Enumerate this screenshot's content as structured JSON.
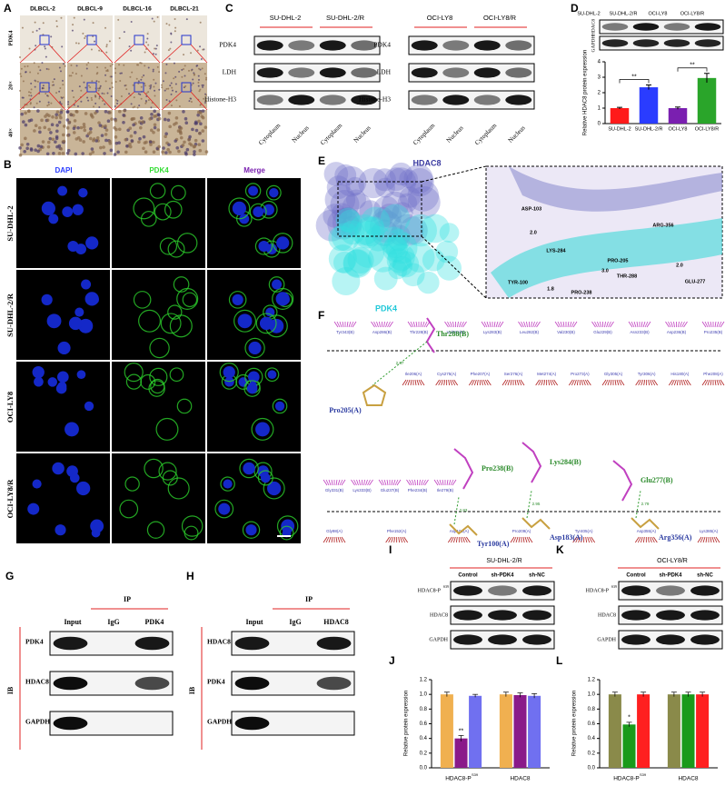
{
  "panel_labels": [
    "A",
    "B",
    "C",
    "D",
    "E",
    "F",
    "G",
    "H",
    "I",
    "J",
    "K",
    "L"
  ],
  "panel_a": {
    "columns": [
      "DLBCL-2",
      "DLBCL-9",
      "DLBCL-16",
      "DLBCL-21"
    ],
    "rows": [
      "PDK4",
      "20×",
      "40×"
    ]
  },
  "panel_b": {
    "columns": [
      "DAPI",
      "PDK4",
      "Merge"
    ],
    "rows": [
      "SU-DHL-2",
      "SU-DHL-2/R",
      "OCI-LY8",
      "OCI-LY8/R"
    ]
  },
  "panel_c": {
    "blots": [
      {
        "groups": [
          "SU-DHL-2",
          "SU-DHL-2/R"
        ],
        "proteins": [
          "PDK4",
          "LDH",
          "Histone-H3"
        ],
        "lanes": [
          "Cytoplasm",
          "Nucleus",
          "Cytoplasm",
          "Nucleus"
        ]
      },
      {
        "groups": [
          "OCI-LY8",
          "OCI-LY8/R"
        ],
        "proteins": [
          "PDK4",
          "LDH",
          "Histone-H3"
        ],
        "lanes": [
          "Cytoplasm",
          "Nucleus",
          "Cytoplasm",
          "Nucleus"
        ]
      }
    ]
  },
  "panel_d": {
    "proteins": [
      "HDAC8",
      "GAPDH"
    ]
  },
  "panel_e": {
    "proteins": [
      "HDAC8",
      "PDK4"
    ],
    "residues": [
      "ASP-103",
      "LYS-284",
      "PRO-205",
      "ARG-356",
      "THR-288",
      "GLU-277",
      "TYR-100",
      "PRO-238"
    ],
    "distances": [
      "2.0",
      "1.8",
      "3.0",
      "2.0"
    ]
  },
  "panel_f": {
    "upper": {
      "top_row": [
        "Tyr343(B)",
        "Asp286(B)",
        "Thr228(B)",
        "Val231(B)",
        "Lys283(B)",
        "Leu282(B)",
        "Val230(B)",
        "Glu229(B)",
        "Asn233(B)",
        "Asp236(B)",
        "Pro235(B)"
      ],
      "bottom_row": [
        "Ile206(A)",
        "Cys275(A)",
        "Phe207(A)",
        "Ser276(A)",
        "Met274(A)",
        "Pro273(A)",
        "Gly305(A)",
        "Tyr306(A)",
        "His180(A)",
        "Phe208(A)"
      ],
      "bonded": [
        "Thr288(B)",
        "Pro205(A)"
      ],
      "distances": [
        "2.87"
      ]
    },
    "lower": {
      "top_row": [
        "Gly331(B)",
        "Lys333(B)",
        "Glu237(B)",
        "Phe234(B)",
        "Ile279(B)"
      ],
      "bottom_row": [
        "Gly98(A)",
        "Phe152(A)",
        "Asp101(A)",
        "Pro209(A)",
        "Tyr405(A)",
        "Asp355(A)",
        "Lys385(A)"
      ],
      "bonded_b": [
        "Pro238(B)",
        "Lys284(B)",
        "Glu277(B)"
      ],
      "bonded_a": [
        "Tyr100(A)",
        "Asp183(A)",
        "Arg356(A)"
      ],
      "distances": [
        "2.83",
        "2.95",
        "2.79"
      ]
    }
  },
  "panel_g": {
    "blot_label": "IB",
    "ip_label": "IP",
    "lanes": [
      "Input",
      "IgG",
      "PDK4"
    ],
    "proteins": [
      "PDK4",
      "HDAC8",
      "GAPDH"
    ]
  },
  "panel_h": {
    "blot_label": "IB",
    "ip_label": "IP",
    "lanes": [
      "Input",
      "IgG",
      "HDAC8"
    ],
    "proteins": [
      "HDAC8",
      "PDK4",
      "GAPDH"
    ]
  },
  "panel_i": {
    "cell_line": "SU-DHL-2/R",
    "proteins": [
      "HDAC8-P",
      "HDAC8",
      "GAPDH"
    ],
    "phospho_site": "S39"
  },
  "panel_k": {
    "cell_line": "OCI-LY8/R",
    "proteins": [
      "HDAC8-P",
      "HDAC8",
      "GAPDH"
    ],
    "phospho_site": "S39"
  },
  "chart_data": [
    {
      "type": "bar",
      "ylabel": "Relative HDAC8 protein expression",
      "categories": [
        "SU-DHL-2",
        "SU-DHL-2/R",
        "OCI-LY8",
        "OCI-LY8/R"
      ],
      "values": [
        1.0,
        2.35,
        1.0,
        2.95
      ],
      "errors": [
        0.05,
        0.15,
        0.07,
        0.3
      ],
      "colors": [
        "#ff1a1a",
        "#2a3cff",
        "#7a1fb0",
        "#2aa52a"
      ],
      "ylim": [
        0,
        4
      ],
      "yticks": [
        0,
        1,
        2,
        3,
        4
      ],
      "significance": [
        "**",
        "**"
      ]
    },
    {
      "type": "grouped-bar",
      "ylabel": "Relative protein expression",
      "categories": [
        "HDAC8-P",
        "HDAC8"
      ],
      "series": [
        {
          "name": "Control",
          "color": "#f0b050",
          "values": [
            1.0,
            1.0
          ],
          "errors": [
            0.03,
            0.03
          ]
        },
        {
          "name": "sh-PDK4",
          "color": "#8a1a8a",
          "values": [
            0.4,
            0.99
          ],
          "errors": [
            0.04,
            0.03
          ]
        },
        {
          "name": "sh-NC",
          "color": "#7070f0",
          "values": [
            0.98,
            0.98
          ],
          "errors": [
            0.02,
            0.03
          ]
        }
      ],
      "ylim": [
        0,
        1.2
      ],
      "yticks": [
        {
          "value": 0,
          "label": "0.0"
        },
        0.2,
        0.4,
        0.6,
        0.8,
        {
          "value": 1,
          "label": "1.0"
        },
        1.2
      ],
      "significance": "**"
    },
    {
      "type": "grouped-bar",
      "ylabel": "Relative protein expression",
      "categories": [
        "HDAC8-P",
        "HDAC8"
      ],
      "series": [
        {
          "name": "Control",
          "color": "#8a8a4a",
          "values": [
            1.0,
            1.0
          ],
          "errors": [
            0.03,
            0.03
          ]
        },
        {
          "name": "sh-PDK4",
          "color": "#1a9a1a",
          "values": [
            0.59,
            1.0
          ],
          "errors": [
            0.03,
            0.03
          ]
        },
        {
          "name": "sh-NC",
          "color": "#ff2020",
          "values": [
            1.0,
            1.0
          ],
          "errors": [
            0.03,
            0.03
          ]
        }
      ],
      "ylim": [
        0,
        1.2
      ],
      "yticks": [
        {
          "value": 0,
          "label": "0.0"
        },
        0.2,
        0.4,
        0.6,
        0.8,
        {
          "value": 1,
          "label": "1.0"
        },
        1.2
      ],
      "significance": "*"
    }
  ]
}
